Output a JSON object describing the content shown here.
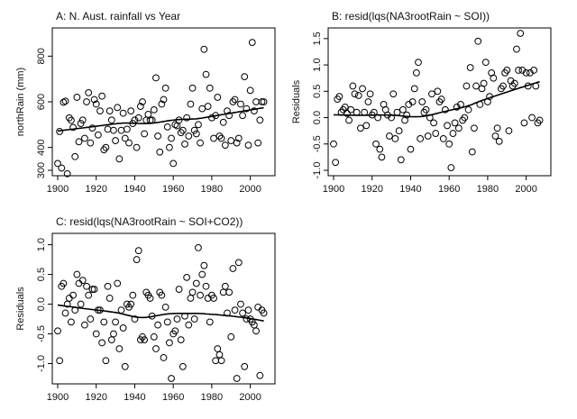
{
  "chart_data": [
    {
      "type": "scatter",
      "title": "A: N. Aust. rainfall vs Year",
      "xlabel": "",
      "ylabel": "northRain (mm)",
      "xlim": [
        1900,
        2010
      ],
      "ylim": [
        300,
        900
      ],
      "xticks": [
        "1900",
        "1920",
        "1940",
        "1960",
        "1980",
        "2000"
      ],
      "yticks": [
        "300",
        "400",
        "600",
        "800"
      ],
      "x": [
        1900,
        1901,
        1902,
        1903,
        1904,
        1905,
        1906,
        1907,
        1908,
        1909,
        1910,
        1911,
        1912,
        1913,
        1914,
        1915,
        1916,
        1917,
        1918,
        1919,
        1920,
        1921,
        1922,
        1923,
        1924,
        1925,
        1926,
        1927,
        1928,
        1929,
        1930,
        1931,
        1932,
        1933,
        1934,
        1935,
        1936,
        1937,
        1938,
        1939,
        1940,
        1941,
        1942,
        1943,
        1944,
        1945,
        1946,
        1947,
        1948,
        1949,
        1950,
        1951,
        1952,
        1953,
        1954,
        1955,
        1956,
        1957,
        1958,
        1959,
        1960,
        1961,
        1962,
        1963,
        1964,
        1965,
        1966,
        1967,
        1968,
        1969,
        1970,
        1971,
        1972,
        1973,
        1974,
        1975,
        1976,
        1977,
        1978,
        1979,
        1980,
        1981,
        1982,
        1983,
        1984,
        1985,
        1986,
        1987,
        1988,
        1989,
        1990,
        1991,
        1992,
        1993,
        1994,
        1995,
        1996,
        1997,
        1998,
        1999,
        2000,
        2001,
        2002,
        2003,
        2004,
        2005,
        2006,
        2007
      ],
      "y": [
        330,
        470,
        310,
        598,
        603,
        285,
        530,
        519,
        488,
        360,
        620,
        425,
        505,
        520,
        440,
        600,
        640,
        420,
        485,
        610,
        590,
        455,
        560,
        625,
        390,
        400,
        480,
        560,
        520,
        475,
        430,
        575,
        350,
        475,
        550,
        440,
        480,
        420,
        560,
        505,
        520,
        400,
        530,
        580,
        600,
        460,
        520,
        545,
        520,
        520,
        565,
        705,
        450,
        380,
        590,
        610,
        660,
        490,
        400,
        440,
        330,
        500,
        495,
        520,
        465,
        475,
        415,
        530,
        450,
        590,
        660,
        475,
        460,
        500,
        420,
        570,
        830,
        720,
        580,
        660,
        530,
        440,
        540,
        620,
        450,
        440,
        510,
        410,
        560,
        540,
        430,
        600,
        610,
        420,
        440,
        590,
        540,
        710,
        570,
        410,
        650,
        860,
        560,
        600,
        420,
        520,
        600,
        600
      ]
    },
    {
      "type": "scatter",
      "title": "B: resid(lqs(NA3rootRain ~ SOI))",
      "xlabel": "",
      "ylabel": "Residuals",
      "xlim": [
        1900,
        2010
      ],
      "ylim": [
        -1.0,
        1.6
      ],
      "xticks": [
        "1900",
        "1920",
        "1940",
        "1960",
        "1980",
        "2000"
      ],
      "yticks": [
        "-1.0",
        "-0.5",
        "0.0",
        "0.5",
        "1.0",
        "1.5"
      ],
      "x": [
        1900,
        1901,
        1902,
        1903,
        1904,
        1905,
        1906,
        1907,
        1908,
        1909,
        1910,
        1911,
        1912,
        1913,
        1914,
        1915,
        1916,
        1917,
        1918,
        1919,
        1920,
        1921,
        1922,
        1923,
        1924,
        1925,
        1926,
        1927,
        1928,
        1929,
        1930,
        1931,
        1932,
        1933,
        1934,
        1935,
        1936,
        1937,
        1938,
        1939,
        1940,
        1941,
        1942,
        1943,
        1944,
        1945,
        1946,
        1947,
        1948,
        1949,
        1950,
        1951,
        1952,
        1953,
        1954,
        1955,
        1956,
        1957,
        1958,
        1959,
        1960,
        1961,
        1962,
        1963,
        1964,
        1965,
        1966,
        1967,
        1968,
        1969,
        1970,
        1971,
        1972,
        1973,
        1974,
        1975,
        1976,
        1977,
        1978,
        1979,
        1980,
        1981,
        1982,
        1983,
        1984,
        1985,
        1986,
        1987,
        1988,
        1989,
        1990,
        1991,
        1992,
        1993,
        1994,
        1995,
        1996,
        1997,
        1998,
        1999,
        2000,
        2001,
        2002,
        2003,
        2004,
        2005,
        2006,
        2007
      ],
      "y": [
        -0.5,
        -0.85,
        0.35,
        0.4,
        0.1,
        0.15,
        0.2,
        0.08,
        -0.05,
        0.15,
        0.6,
        0.45,
        0.1,
        0.42,
        -0.2,
        0.55,
        0.1,
        -0.15,
        0.3,
        0.45,
        0.05,
        0.1,
        -0.5,
        0.0,
        -0.6,
        -0.75,
        0.25,
        0.15,
        0.05,
        -0.35,
        0.0,
        0.45,
        -0.4,
        0.1,
        -0.25,
        -0.8,
        0.15,
        -0.05,
        0.05,
        0.25,
        -0.6,
        0.3,
        0.55,
        0.85,
        1.05,
        -0.4,
        0.3,
        0.1,
        0.15,
        -0.35,
        0.0,
        0.45,
        -0.1,
        -0.3,
        0.5,
        0.3,
        0.35,
        -0.4,
        0.15,
        -0.15,
        -0.5,
        -0.95,
        -0.3,
        -0.1,
        0.2,
        -0.2,
        0.25,
        -0.05,
        0.0,
        0.6,
        0.15,
        0.95,
        -0.65,
        -0.2,
        0.6,
        1.45,
        0.25,
        0.55,
        0.65,
        1.05,
        0.3,
        0.4,
        0.85,
        0.75,
        -0.35,
        -0.2,
        -0.45,
        0.55,
        0.6,
        0.85,
        0.9,
        -0.25,
        0.7,
        0.6,
        0.65,
        1.3,
        0.9,
        1.6,
        0.9,
        -0.1,
        0.85,
        0.6,
        0.85,
        0.0,
        0.9,
        0.6,
        -0.1,
        -0.05
      ]
    },
    {
      "type": "scatter",
      "title": "C: resid(lqs(NA3rootRain ~ SOI+CO2))",
      "xlabel": "",
      "ylabel": "Residuals",
      "xlim": [
        1900,
        2010
      ],
      "ylim": [
        -1.25,
        1.1
      ],
      "xticks": [
        "1900",
        "1920",
        "1940",
        "1960",
        "1980",
        "2000"
      ],
      "yticks": [
        "-1.0",
        "-0.5",
        "0.0",
        "0.5",
        "1.0"
      ],
      "x": [
        1900,
        1901,
        1902,
        1903,
        1904,
        1905,
        1906,
        1907,
        1908,
        1909,
        1910,
        1911,
        1912,
        1913,
        1914,
        1915,
        1916,
        1917,
        1918,
        1919,
        1920,
        1921,
        1922,
        1923,
        1924,
        1925,
        1926,
        1927,
        1928,
        1929,
        1930,
        1931,
        1932,
        1933,
        1934,
        1935,
        1936,
        1937,
        1938,
        1939,
        1940,
        1941,
        1942,
        1943,
        1944,
        1945,
        1946,
        1947,
        1948,
        1949,
        1950,
        1951,
        1952,
        1953,
        1954,
        1955,
        1956,
        1957,
        1958,
        1959,
        1960,
        1961,
        1962,
        1963,
        1964,
        1965,
        1966,
        1967,
        1968,
        1969,
        1970,
        1971,
        1972,
        1973,
        1974,
        1975,
        1976,
        1977,
        1978,
        1979,
        1980,
        1981,
        1982,
        1983,
        1984,
        1985,
        1986,
        1987,
        1988,
        1989,
        1990,
        1991,
        1992,
        1993,
        1994,
        1995,
        1996,
        1997,
        1998,
        1999,
        2000,
        2001,
        2002,
        2003,
        2004,
        2005,
        2006,
        2007
      ],
      "y": [
        -0.45,
        -0.95,
        0.3,
        0.35,
        -0.15,
        0.0,
        0.1,
        -0.3,
        0.15,
        -0.1,
        0.5,
        0.35,
        0.0,
        0.4,
        -0.35,
        0.3,
        0.15,
        -0.25,
        0.25,
        0.25,
        -0.5,
        -0.1,
        -0.1,
        -0.65,
        -0.3,
        -0.95,
        0.3,
        0.1,
        -0.6,
        -0.5,
        -0.3,
        0.35,
        -0.75,
        -0.1,
        -0.4,
        -1.05,
        0.0,
        -0.05,
        0.0,
        0.15,
        -0.25,
        0.75,
        0.9,
        -0.6,
        -0.55,
        -0.6,
        0.2,
        0.15,
        0.1,
        -0.2,
        -0.55,
        -0.75,
        -0.35,
        0.2,
        0.15,
        -0.9,
        -0.05,
        -0.3,
        -0.65,
        -1.25,
        -0.5,
        -0.45,
        -0.25,
        0.25,
        -0.6,
        -1.05,
        -0.2,
        0.45,
        -0.35,
        0.1,
        0.2,
        -0.25,
        0.35,
        0.95,
        0.15,
        0.5,
        0.65,
        0.3,
        0.1,
        -0.3,
        0.15,
        0.1,
        -0.95,
        -0.75,
        -0.85,
        -0.95,
        0.2,
        0.3,
        -0.15,
        0.2,
        -0.55,
        0.6,
        -0.1,
        -1.25,
        0.7,
        0.0,
        -0.15,
        -1.05,
        -0.25,
        -0.1,
        -0.25,
        -0.3,
        -0.35,
        -0.45,
        -0.05,
        -1.2,
        -0.1,
        -0.15
      ]
    }
  ]
}
